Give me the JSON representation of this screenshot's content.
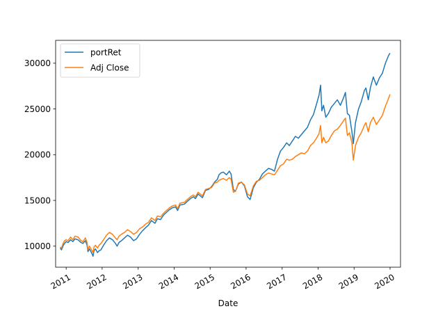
{
  "chart_data": {
    "type": "line",
    "title": "",
    "xlabel": "Date",
    "ylabel": "",
    "x_axis_type": "date",
    "xlim": [
      "2010-09-16",
      "2020-04-16"
    ],
    "ylim": [
      7700,
      32500
    ],
    "x_ticks": [
      {
        "value": "2011-01-01",
        "label": "2011"
      },
      {
        "value": "2012-01-01",
        "label": "2012"
      },
      {
        "value": "2013-01-01",
        "label": "2013"
      },
      {
        "value": "2014-01-01",
        "label": "2014"
      },
      {
        "value": "2015-01-01",
        "label": "2015"
      },
      {
        "value": "2016-01-01",
        "label": "2016"
      },
      {
        "value": "2017-01-01",
        "label": "2017"
      },
      {
        "value": "2018-01-01",
        "label": "2018"
      },
      {
        "value": "2019-01-01",
        "label": "2019"
      },
      {
        "value": "2020-01-01",
        "label": "2020"
      }
    ],
    "y_ticks": [
      {
        "value": 10000,
        "label": "10000"
      },
      {
        "value": 15000,
        "label": "15000"
      },
      {
        "value": 20000,
        "label": "20000"
      },
      {
        "value": 25000,
        "label": "25000"
      },
      {
        "value": 30000,
        "label": "30000"
      }
    ],
    "grid": false,
    "legend_position": "upper-left",
    "series": [
      {
        "name": "portRet",
        "color": "#1f77b4",
        "points": [
          [
            "2010-11-01",
            9800
          ],
          [
            "2010-11-15",
            9600
          ],
          [
            "2010-12-01",
            10050
          ],
          [
            "2010-12-15",
            10300
          ],
          [
            "2011-01-01",
            10500
          ],
          [
            "2011-01-20",
            10400
          ],
          [
            "2011-02-15",
            10700
          ],
          [
            "2011-03-10",
            10500
          ],
          [
            "2011-04-01",
            10800
          ],
          [
            "2011-05-01",
            10700
          ],
          [
            "2011-06-01",
            10400
          ],
          [
            "2011-06-20",
            10300
          ],
          [
            "2011-07-15",
            10600
          ],
          [
            "2011-08-01",
            10100
          ],
          [
            "2011-08-10",
            9400
          ],
          [
            "2011-08-25",
            9700
          ],
          [
            "2011-09-15",
            9300
          ],
          [
            "2011-10-01",
            8900
          ],
          [
            "2011-10-10",
            9500
          ],
          [
            "2011-10-25",
            9700
          ],
          [
            "2011-11-15",
            9300
          ],
          [
            "2011-12-01",
            9500
          ],
          [
            "2011-12-20",
            9600
          ],
          [
            "2012-01-15",
            10100
          ],
          [
            "2012-02-15",
            10600
          ],
          [
            "2012-03-15",
            10900
          ],
          [
            "2012-04-15",
            10700
          ],
          [
            "2012-05-15",
            10300
          ],
          [
            "2012-06-01",
            10000
          ],
          [
            "2012-06-20",
            10400
          ],
          [
            "2012-07-15",
            10600
          ],
          [
            "2012-08-15",
            10900
          ],
          [
            "2012-09-15",
            11200
          ],
          [
            "2012-10-15",
            11000
          ],
          [
            "2012-11-15",
            10600
          ],
          [
            "2012-12-15",
            10800
          ],
          [
            "2013-01-15",
            11300
          ],
          [
            "2013-02-15",
            11700
          ],
          [
            "2013-03-15",
            12000
          ],
          [
            "2013-04-15",
            12300
          ],
          [
            "2013-05-15",
            12800
          ],
          [
            "2013-06-20",
            12500
          ],
          [
            "2013-07-15",
            13000
          ],
          [
            "2013-08-15",
            12900
          ],
          [
            "2013-09-15",
            13400
          ],
          [
            "2013-10-15",
            13700
          ],
          [
            "2013-11-15",
            14000
          ],
          [
            "2013-12-15",
            14200
          ],
          [
            "2014-01-15",
            14300
          ],
          [
            "2014-02-05",
            13900
          ],
          [
            "2014-03-01",
            14500
          ],
          [
            "2014-04-15",
            14600
          ],
          [
            "2014-05-15",
            14900
          ],
          [
            "2014-06-15",
            15200
          ],
          [
            "2014-07-15",
            15400
          ],
          [
            "2014-08-05",
            15200
          ],
          [
            "2014-09-01",
            15700
          ],
          [
            "2014-10-15",
            15300
          ],
          [
            "2014-11-15",
            16100
          ],
          [
            "2014-12-15",
            16200
          ],
          [
            "2015-01-15",
            16500
          ],
          [
            "2015-02-15",
            17000
          ],
          [
            "2015-03-15",
            17300
          ],
          [
            "2015-04-01",
            17800
          ],
          [
            "2015-04-20",
            18000
          ],
          [
            "2015-05-15",
            18100
          ],
          [
            "2015-06-15",
            17800
          ],
          [
            "2015-07-15",
            18200
          ],
          [
            "2015-08-01",
            17900
          ],
          [
            "2015-08-25",
            16200
          ],
          [
            "2015-09-15",
            16000
          ],
          [
            "2015-10-15",
            16800
          ],
          [
            "2015-11-15",
            17000
          ],
          [
            "2015-12-15",
            16600
          ],
          [
            "2016-01-15",
            15400
          ],
          [
            "2016-02-11",
            15100
          ],
          [
            "2016-03-15",
            16400
          ],
          [
            "2016-04-15",
            17000
          ],
          [
            "2016-05-15",
            17300
          ],
          [
            "2016-06-15",
            17900
          ],
          [
            "2016-07-15",
            18200
          ],
          [
            "2016-08-15",
            18500
          ],
          [
            "2016-09-15",
            18400
          ],
          [
            "2016-10-15",
            18200
          ],
          [
            "2016-11-15",
            19500
          ],
          [
            "2016-12-15",
            20400
          ],
          [
            "2017-01-15",
            20800
          ],
          [
            "2017-02-15",
            21300
          ],
          [
            "2017-03-15",
            21000
          ],
          [
            "2017-04-15",
            21500
          ],
          [
            "2017-05-15",
            22000
          ],
          [
            "2017-06-15",
            21800
          ],
          [
            "2017-07-15",
            22200
          ],
          [
            "2017-08-15",
            22600
          ],
          [
            "2017-09-15",
            23000
          ],
          [
            "2017-10-15",
            23800
          ],
          [
            "2017-11-15",
            24400
          ],
          [
            "2017-12-15",
            25500
          ],
          [
            "2018-01-10",
            26500
          ],
          [
            "2018-01-26",
            27600
          ],
          [
            "2018-02-08",
            24800
          ],
          [
            "2018-02-25",
            25400
          ],
          [
            "2018-03-20",
            24100
          ],
          [
            "2018-04-15",
            24500
          ],
          [
            "2018-05-15",
            25200
          ],
          [
            "2018-06-15",
            25600
          ],
          [
            "2018-07-15",
            26000
          ],
          [
            "2018-08-15",
            25400
          ],
          [
            "2018-09-15",
            26200
          ],
          [
            "2018-10-05",
            26800
          ],
          [
            "2018-10-25",
            24500
          ],
          [
            "2018-11-15",
            24300
          ],
          [
            "2018-12-10",
            22500
          ],
          [
            "2018-12-24",
            21200
          ],
          [
            "2019-01-15",
            23500
          ],
          [
            "2019-02-15",
            25000
          ],
          [
            "2019-03-15",
            25800
          ],
          [
            "2019-04-15",
            27000
          ],
          [
            "2019-05-01",
            27300
          ],
          [
            "2019-05-25",
            26000
          ],
          [
            "2019-06-15",
            27300
          ],
          [
            "2019-07-15",
            28500
          ],
          [
            "2019-08-15",
            27600
          ],
          [
            "2019-09-15",
            28400
          ],
          [
            "2019-10-15",
            28900
          ],
          [
            "2019-11-15",
            30000
          ],
          [
            "2019-12-15",
            30800
          ],
          [
            "2019-12-31",
            31100
          ]
        ]
      },
      {
        "name": "Adj Close",
        "color": "#ff7f0e",
        "points": [
          [
            "2010-11-01",
            9900
          ],
          [
            "2010-11-15",
            9800
          ],
          [
            "2010-12-01",
            10300
          ],
          [
            "2010-12-15",
            10600
          ],
          [
            "2011-01-01",
            10700
          ],
          [
            "2011-01-20",
            10600
          ],
          [
            "2011-02-15",
            11000
          ],
          [
            "2011-03-10",
            10700
          ],
          [
            "2011-04-01",
            11100
          ],
          [
            "2011-05-01",
            11000
          ],
          [
            "2011-06-01",
            10600
          ],
          [
            "2011-06-20",
            10500
          ],
          [
            "2011-07-15",
            10900
          ],
          [
            "2011-08-01",
            10400
          ],
          [
            "2011-08-10",
            9600
          ],
          [
            "2011-08-25",
            10000
          ],
          [
            "2011-09-15",
            9600
          ],
          [
            "2011-10-01",
            9300
          ],
          [
            "2011-10-10",
            9900
          ],
          [
            "2011-10-25",
            10100
          ],
          [
            "2011-11-15",
            9800
          ],
          [
            "2011-12-01",
            10100
          ],
          [
            "2011-12-20",
            10300
          ],
          [
            "2012-01-15",
            10700
          ],
          [
            "2012-02-15",
            11200
          ],
          [
            "2012-03-15",
            11500
          ],
          [
            "2012-04-15",
            11300
          ],
          [
            "2012-05-15",
            10900
          ],
          [
            "2012-06-01",
            10700
          ],
          [
            "2012-06-20",
            11100
          ],
          [
            "2012-07-15",
            11300
          ],
          [
            "2012-08-15",
            11500
          ],
          [
            "2012-09-15",
            11800
          ],
          [
            "2012-10-15",
            11600
          ],
          [
            "2012-11-15",
            11300
          ],
          [
            "2012-12-15",
            11500
          ],
          [
            "2013-01-15",
            11900
          ],
          [
            "2013-02-15",
            12100
          ],
          [
            "2013-03-15",
            12400
          ],
          [
            "2013-04-15",
            12600
          ],
          [
            "2013-05-15",
            13100
          ],
          [
            "2013-06-20",
            12800
          ],
          [
            "2013-07-15",
            13300
          ],
          [
            "2013-08-15",
            13200
          ],
          [
            "2013-09-15",
            13600
          ],
          [
            "2013-10-15",
            13900
          ],
          [
            "2013-11-15",
            14200
          ],
          [
            "2013-12-15",
            14400
          ],
          [
            "2014-01-15",
            14500
          ],
          [
            "2014-02-05",
            14100
          ],
          [
            "2014-03-01",
            14700
          ],
          [
            "2014-04-15",
            14800
          ],
          [
            "2014-05-15",
            15100
          ],
          [
            "2014-06-15",
            15400
          ],
          [
            "2014-07-15",
            15600
          ],
          [
            "2014-08-05",
            15400
          ],
          [
            "2014-09-01",
            15900
          ],
          [
            "2014-10-15",
            15500
          ],
          [
            "2014-11-15",
            16200
          ],
          [
            "2014-12-15",
            16300
          ],
          [
            "2015-01-15",
            16400
          ],
          [
            "2015-02-15",
            16900
          ],
          [
            "2015-03-15",
            17000
          ],
          [
            "2015-04-01",
            17200
          ],
          [
            "2015-04-20",
            17300
          ],
          [
            "2015-05-15",
            17400
          ],
          [
            "2015-06-15",
            17200
          ],
          [
            "2015-07-15",
            17500
          ],
          [
            "2015-08-01",
            17300
          ],
          [
            "2015-08-25",
            15900
          ],
          [
            "2015-09-15",
            16000
          ],
          [
            "2015-10-15",
            16900
          ],
          [
            "2015-11-15",
            17000
          ],
          [
            "2015-12-15",
            16700
          ],
          [
            "2016-01-15",
            15700
          ],
          [
            "2016-02-11",
            15500
          ],
          [
            "2016-03-15",
            16600
          ],
          [
            "2016-04-15",
            17100
          ],
          [
            "2016-05-15",
            17200
          ],
          [
            "2016-06-15",
            17500
          ],
          [
            "2016-07-15",
            17800
          ],
          [
            "2016-08-15",
            18000
          ],
          [
            "2016-09-15",
            17900
          ],
          [
            "2016-10-15",
            17800
          ],
          [
            "2016-11-15",
            18300
          ],
          [
            "2016-12-15",
            18800
          ],
          [
            "2017-01-15",
            19000
          ],
          [
            "2017-02-15",
            19500
          ],
          [
            "2017-03-15",
            19400
          ],
          [
            "2017-04-15",
            19500
          ],
          [
            "2017-05-15",
            19800
          ],
          [
            "2017-06-15",
            20000
          ],
          [
            "2017-07-15",
            20200
          ],
          [
            "2017-08-15",
            20100
          ],
          [
            "2017-09-15",
            20400
          ],
          [
            "2017-10-15",
            21000
          ],
          [
            "2017-11-15",
            21300
          ],
          [
            "2017-12-15",
            21800
          ],
          [
            "2018-01-10",
            22300
          ],
          [
            "2018-01-26",
            23200
          ],
          [
            "2018-02-08",
            21300
          ],
          [
            "2018-02-25",
            21900
          ],
          [
            "2018-03-20",
            21300
          ],
          [
            "2018-04-15",
            21500
          ],
          [
            "2018-05-15",
            22100
          ],
          [
            "2018-06-15",
            22600
          ],
          [
            "2018-07-15",
            22800
          ],
          [
            "2018-08-15",
            23200
          ],
          [
            "2018-09-15",
            23700
          ],
          [
            "2018-10-05",
            24000
          ],
          [
            "2018-10-25",
            22100
          ],
          [
            "2018-11-15",
            22400
          ],
          [
            "2018-12-10",
            21300
          ],
          [
            "2018-12-24",
            19400
          ],
          [
            "2019-01-15",
            21000
          ],
          [
            "2019-02-15",
            21900
          ],
          [
            "2019-03-15",
            22400
          ],
          [
            "2019-04-15",
            23200
          ],
          [
            "2019-05-01",
            23500
          ],
          [
            "2019-05-25",
            22500
          ],
          [
            "2019-06-15",
            23500
          ],
          [
            "2019-07-15",
            24100
          ],
          [
            "2019-08-15",
            23300
          ],
          [
            "2019-09-15",
            23800
          ],
          [
            "2019-10-15",
            24300
          ],
          [
            "2019-11-15",
            25300
          ],
          [
            "2019-12-15",
            26100
          ],
          [
            "2019-12-31",
            26600
          ]
        ]
      }
    ]
  }
}
